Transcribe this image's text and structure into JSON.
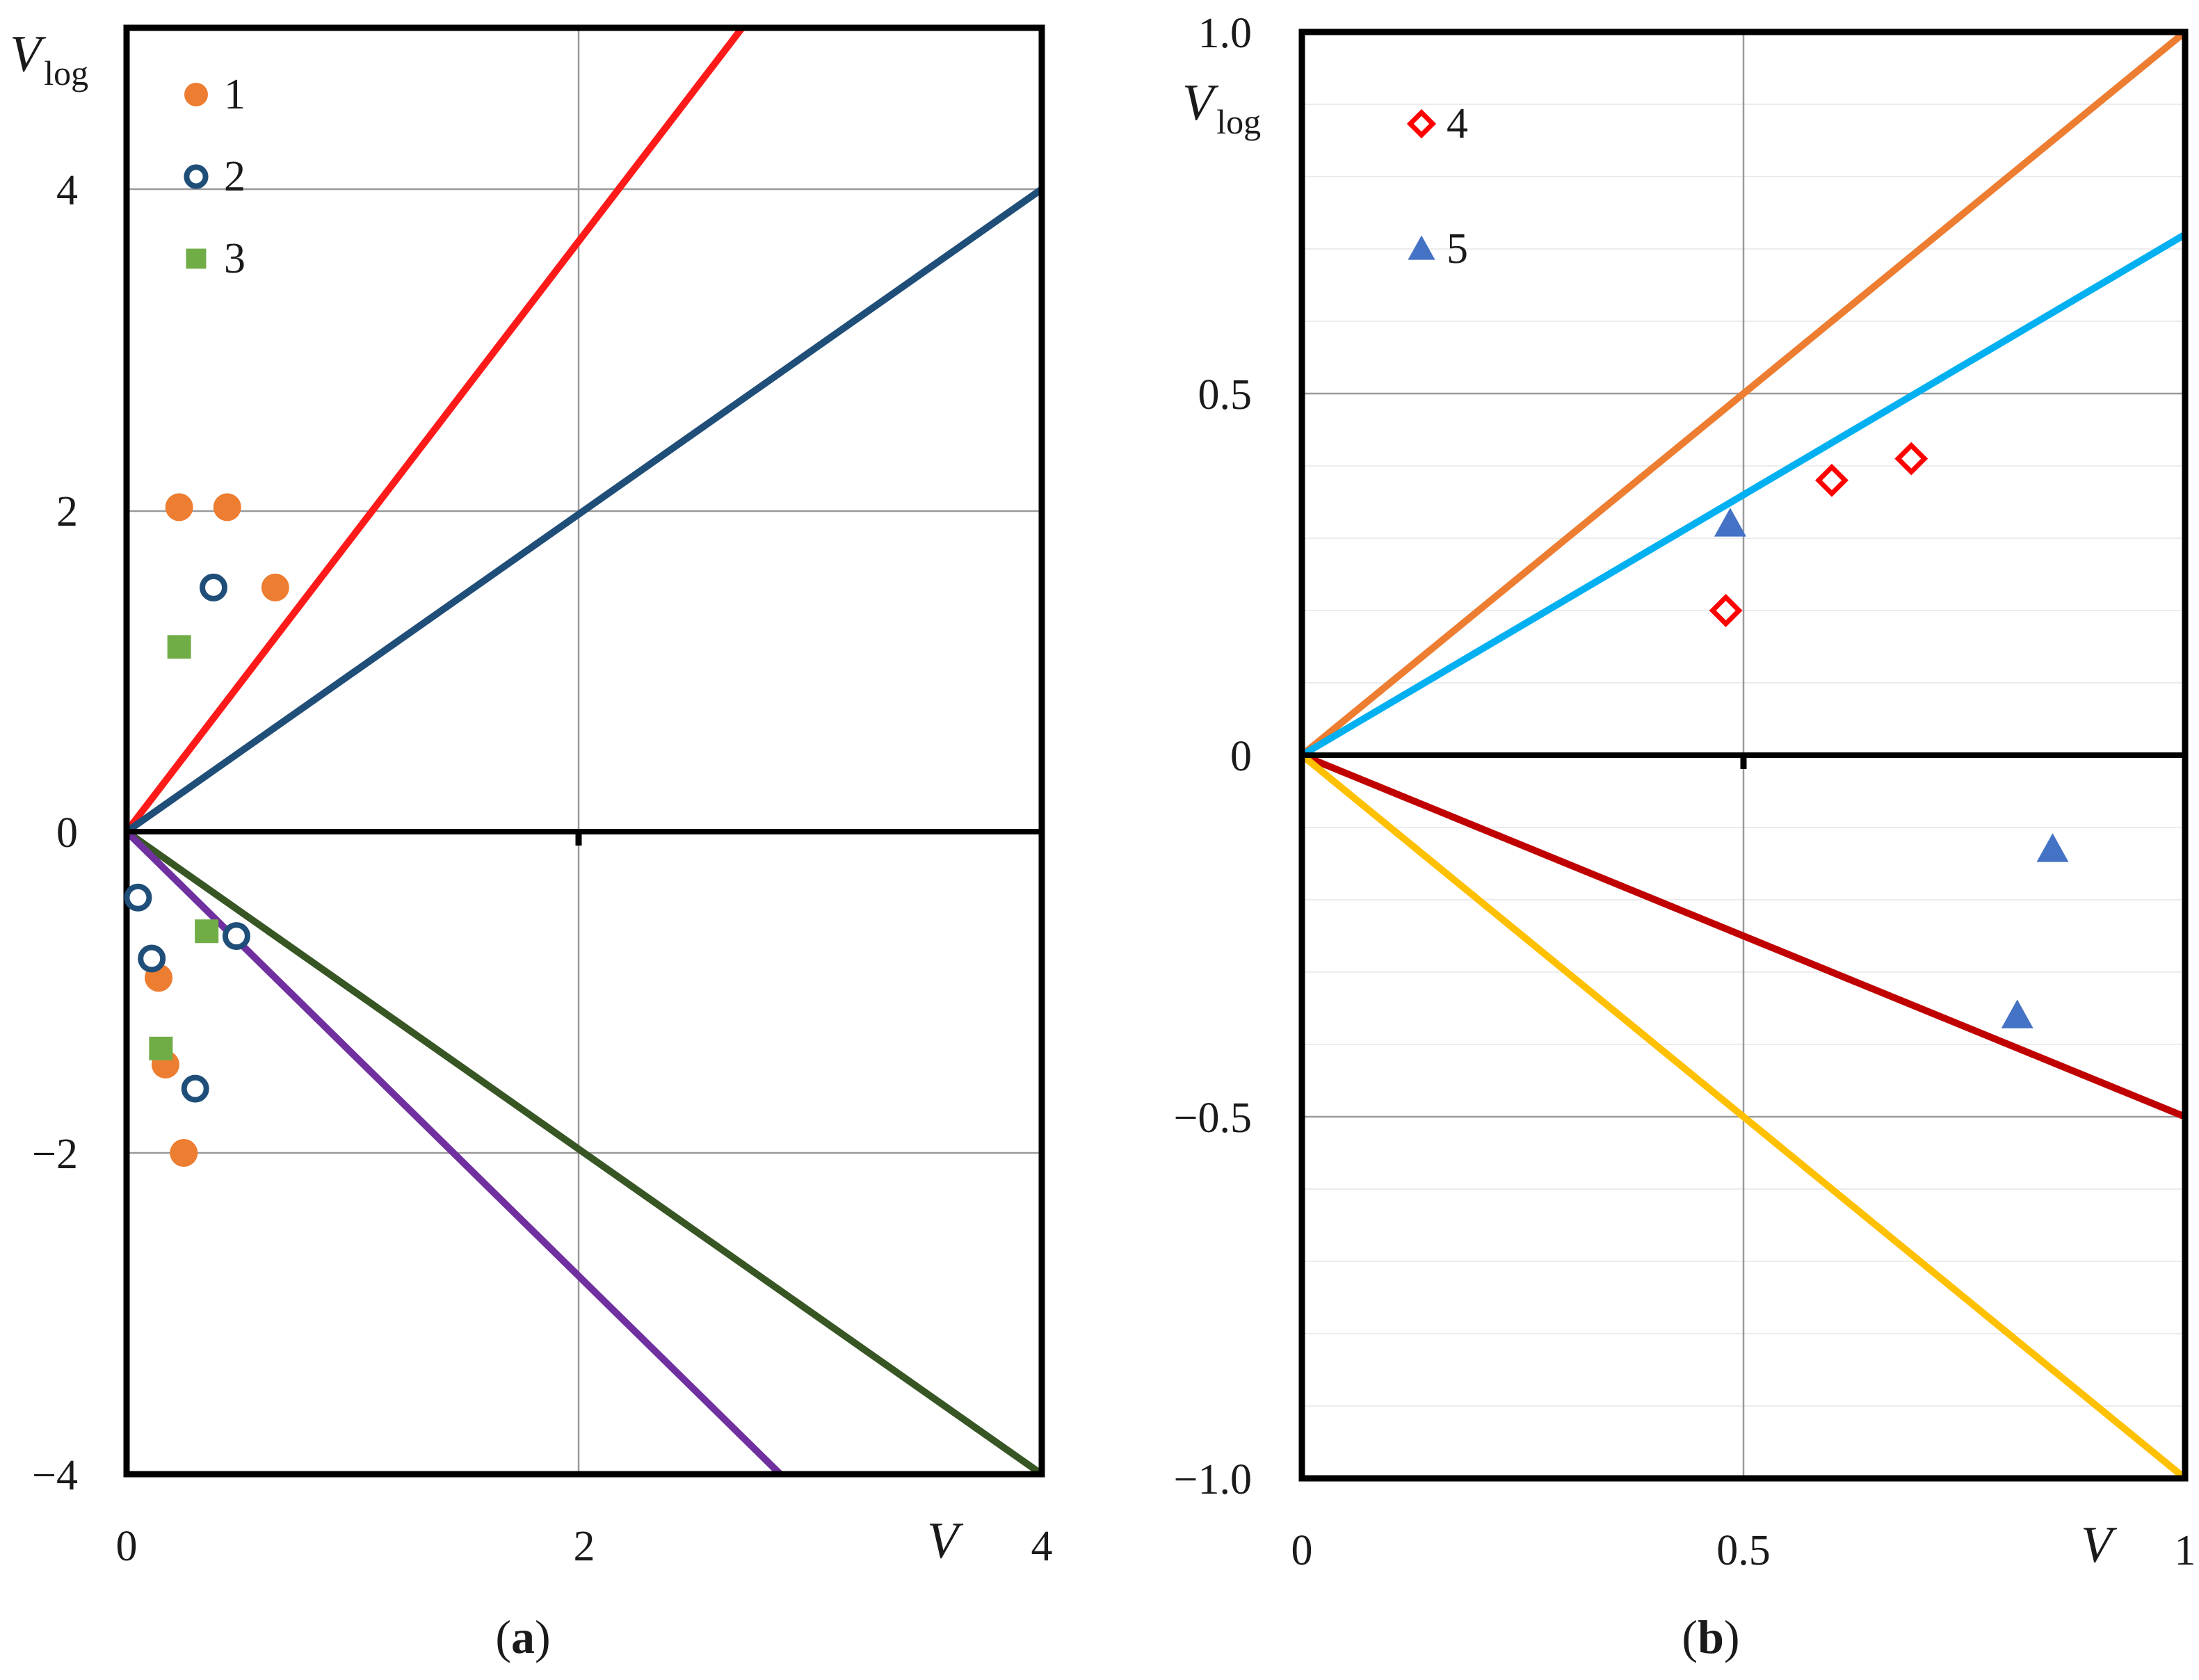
{
  "chart_data": [
    {
      "type": "scatter",
      "panel_label": "a",
      "xlabel": "V",
      "ylabel": {
        "main": "V",
        "sub": "log"
      },
      "xlim": [
        0,
        4
      ],
      "ylim": [
        -4,
        4.5
      ],
      "x_ticks": [
        "0",
        "2",
        "4"
      ],
      "y_ticks": [
        "4",
        "2",
        "0",
        "−2",
        "−4"
      ],
      "grid": true,
      "legend_position": "top-left",
      "lines": [
        {
          "color": "#ff1a1a",
          "slope": 1.86
        },
        {
          "color": "#1f4e79",
          "slope": 1.0
        },
        {
          "color": "#375623",
          "slope": -1.0
        },
        {
          "color": "#7030a0",
          "slope": -1.4
        }
      ],
      "series": [
        {
          "name": "1",
          "marker": "filled-circle",
          "color": "#ed7d31",
          "points": [
            [
              0.23,
              2.02
            ],
            [
              0.44,
              2.02
            ],
            [
              0.65,
              1.52
            ],
            [
              0.14,
              -0.91
            ],
            [
              0.17,
              -1.45
            ],
            [
              0.25,
              -2.0
            ]
          ]
        },
        {
          "name": "2",
          "marker": "open-circle",
          "color": "#1f4e79",
          "points": [
            [
              0.38,
              1.52
            ],
            [
              0.05,
              -0.41
            ],
            [
              0.11,
              -0.79
            ],
            [
              0.48,
              -0.65
            ],
            [
              0.3,
              -1.6
            ]
          ]
        },
        {
          "name": "3",
          "marker": "filled-square",
          "color": "#70ad47",
          "points": [
            [
              0.23,
              1.15
            ],
            [
              0.35,
              -0.62
            ],
            [
              0.15,
              -1.35
            ]
          ]
        }
      ]
    },
    {
      "type": "scatter",
      "panel_label": "b",
      "xlabel": "V",
      "ylabel": {
        "main": "V",
        "sub": "log"
      },
      "xlim": [
        0,
        1
      ],
      "ylim": [
        -1,
        1
      ],
      "x_ticks": [
        "0",
        "0.5",
        "1"
      ],
      "y_ticks": [
        "1.0",
        "0.5",
        "0",
        "−0.5",
        "−1.0"
      ],
      "grid": true,
      "legend_position": "top-left",
      "lines": [
        {
          "color": "#ed7d31",
          "slope": 1.0
        },
        {
          "color": "#00b0f0",
          "slope": 0.72
        },
        {
          "color": "#c00000",
          "slope": -0.5
        },
        {
          "color": "#ffc000",
          "slope": -1.0
        }
      ],
      "series": [
        {
          "name": "4",
          "marker": "open-diamond",
          "color": "#ff0000",
          "points": [
            [
              0.48,
              0.2
            ],
            [
              0.6,
              0.38
            ],
            [
              0.69,
              0.41
            ]
          ]
        },
        {
          "name": "5",
          "marker": "filled-triangle",
          "color": "#4472c4",
          "points": [
            [
              0.485,
              0.32
            ],
            [
              0.85,
              -0.13
            ],
            [
              0.81,
              -0.36
            ]
          ]
        }
      ]
    }
  ]
}
